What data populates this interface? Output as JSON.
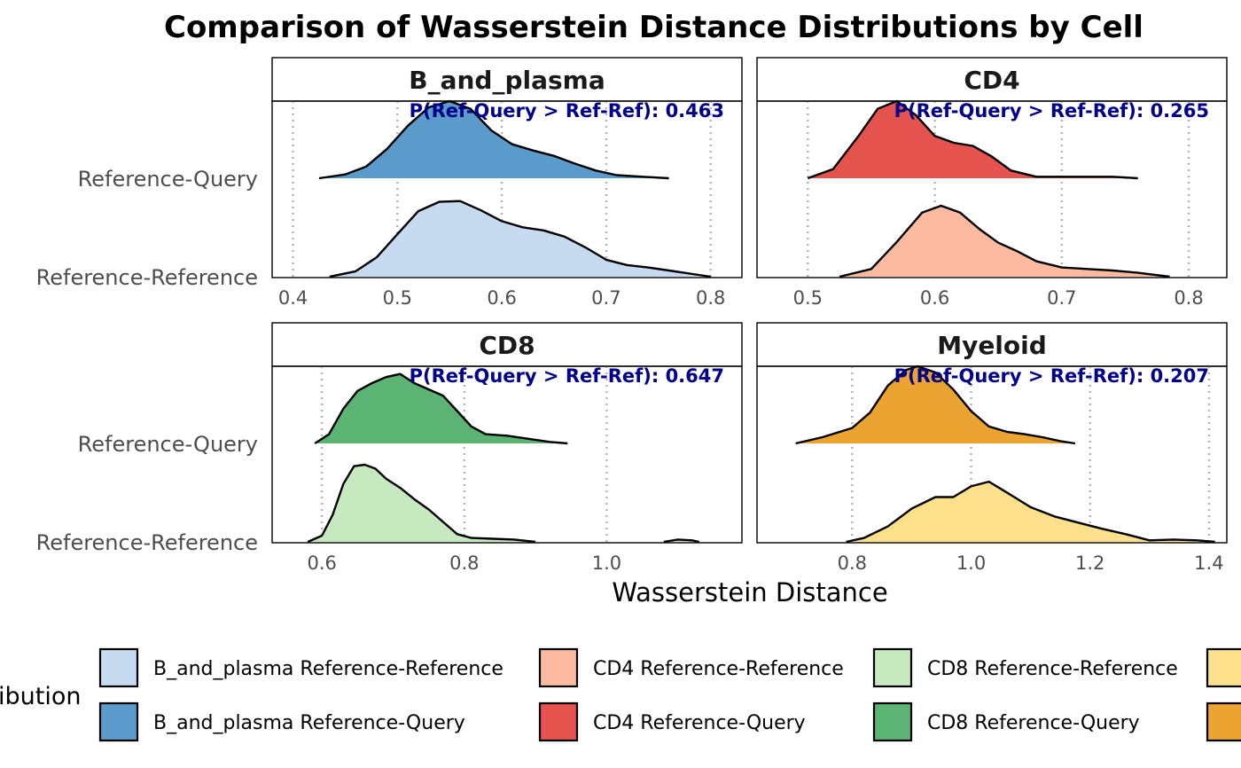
{
  "chart_data": {
    "type": "area",
    "subtype": "ridgeline-density",
    "title": "Comparison of Wasserstein Distance Distributions by Cell",
    "xlabel": "Wasserstein Distance",
    "ylabel": "",
    "grid": "dotted vertical major gridlines",
    "categories": [
      "Reference-Query",
      "Reference-Reference"
    ],
    "legend": {
      "title": "ibution",
      "position": "bottom",
      "items": [
        {
          "label": "B_and_plasma Reference-Reference",
          "color": "#c6dbef"
        },
        {
          "label": "B_and_plasma Reference-Query",
          "color": "#5b9bcb"
        },
        {
          "label": "CD4 Reference-Reference",
          "color": "#fcbba1"
        },
        {
          "label": "CD4 Reference-Query",
          "color": "#e5534f"
        },
        {
          "label": "CD8 Reference-Reference",
          "color": "#c7e9c0"
        },
        {
          "label": "CD8 Reference-Query",
          "color": "#5bb374"
        },
        {
          "label": "",
          "color": "#fde08b"
        },
        {
          "label": "",
          "color": "#eba332"
        }
      ]
    },
    "panels": [
      {
        "name": "B_and_plasma",
        "annotation": "P(Ref-Query > Ref-Ref): 0.463",
        "xlim": [
          0.38,
          0.83
        ],
        "xticks": [
          0.4,
          0.5,
          0.6,
          0.7,
          0.8
        ],
        "xtick_labels": [
          "0.4",
          "0.5",
          "0.6",
          "0.7",
          "0.8"
        ],
        "series": [
          {
            "name": "Reference-Query",
            "color": "#5b9bcb",
            "x": [
              0.425,
              0.45,
              0.47,
              0.49,
              0.51,
              0.53,
              0.55,
              0.57,
              0.59,
              0.61,
              0.63,
              0.65,
              0.67,
              0.69,
              0.71,
              0.735,
              0.76
            ],
            "y": [
              0.0,
              0.05,
              0.15,
              0.38,
              0.68,
              0.92,
              1.0,
              0.9,
              0.62,
              0.44,
              0.36,
              0.29,
              0.19,
              0.1,
              0.04,
              0.02,
              0.0
            ]
          },
          {
            "name": "Reference-Reference",
            "color": "#c6dbef",
            "x": [
              0.435,
              0.46,
              0.48,
              0.5,
              0.52,
              0.54,
              0.56,
              0.58,
              0.6,
              0.62,
              0.64,
              0.66,
              0.68,
              0.7,
              0.72,
              0.74,
              0.76,
              0.78,
              0.8
            ],
            "y": [
              0.0,
              0.07,
              0.25,
              0.55,
              0.85,
              0.97,
              0.98,
              0.86,
              0.72,
              0.64,
              0.6,
              0.52,
              0.38,
              0.22,
              0.15,
              0.12,
              0.08,
              0.04,
              0.0
            ]
          }
        ]
      },
      {
        "name": "CD4",
        "annotation": "P(Ref-Query > Ref-Ref): 0.265",
        "xlim": [
          0.46,
          0.83
        ],
        "xticks": [
          0.5,
          0.6,
          0.7,
          0.8
        ],
        "xtick_labels": [
          "0.5",
          "0.6",
          "0.7",
          "0.8"
        ],
        "series": [
          {
            "name": "Reference-Query",
            "color": "#e5534f",
            "x": [
              0.5,
              0.52,
              0.54,
              0.555,
              0.57,
              0.585,
              0.6,
              0.615,
              0.63,
              0.645,
              0.66,
              0.68,
              0.7,
              0.72,
              0.74,
              0.76
            ],
            "y": [
              0.0,
              0.12,
              0.55,
              0.9,
              1.0,
              0.82,
              0.55,
              0.46,
              0.42,
              0.28,
              0.1,
              0.02,
              0.02,
              0.02,
              0.02,
              0.0
            ]
          },
          {
            "name": "Reference-Reference",
            "color": "#fcbba1",
            "x": [
              0.525,
              0.55,
              0.57,
              0.59,
              0.605,
              0.62,
              0.635,
              0.65,
              0.665,
              0.68,
              0.7,
              0.72,
              0.74,
              0.76,
              0.785
            ],
            "y": [
              0.0,
              0.1,
              0.45,
              0.83,
              0.92,
              0.83,
              0.62,
              0.44,
              0.33,
              0.2,
              0.12,
              0.1,
              0.08,
              0.05,
              0.0
            ]
          }
        ]
      },
      {
        "name": "CD8",
        "annotation": "P(Ref-Query > Ref-Ref): 0.647",
        "xlim": [
          0.53,
          1.19
        ],
        "xticks": [
          0.6,
          0.8,
          1.0
        ],
        "xtick_labels": [
          "0.6",
          "0.8",
          "1.0"
        ],
        "series": [
          {
            "name": "Reference-Query",
            "color": "#5bb374",
            "x": [
              0.59,
              0.61,
              0.63,
              0.65,
              0.67,
              0.69,
              0.71,
              0.73,
              0.75,
              0.77,
              0.79,
              0.81,
              0.83,
              0.86,
              0.89,
              0.92,
              0.945
            ],
            "y": [
              0.0,
              0.12,
              0.45,
              0.68,
              0.78,
              0.86,
              0.9,
              0.78,
              0.7,
              0.62,
              0.42,
              0.22,
              0.12,
              0.1,
              0.06,
              0.02,
              0.0
            ]
          },
          {
            "name": "Reference-Reference",
            "color": "#c7e9c0",
            "x": [
              0.58,
              0.6,
              0.615,
              0.63,
              0.645,
              0.66,
              0.675,
              0.69,
              0.71,
              0.73,
              0.75,
              0.77,
              0.79,
              0.81,
              0.84,
              0.87,
              0.9
            ],
            "y": [
              0.0,
              0.08,
              0.35,
              0.75,
              0.98,
              1.0,
              0.95,
              0.82,
              0.7,
              0.55,
              0.42,
              0.26,
              0.1,
              0.05,
              0.04,
              0.03,
              0.0
            ]
          },
          {
            "name": "Reference-Reference",
            "color": "#c7e9c0",
            "x": [
              1.08,
              1.1,
              1.12,
              1.13
            ],
            "y": [
              0.0,
              0.03,
              0.02,
              0.0
            ]
          }
        ]
      },
      {
        "name": "Myeloid",
        "annotation": "P(Ref-Query > Ref-Ref): 0.207",
        "xlim": [
          0.64,
          1.43
        ],
        "xticks": [
          0.8,
          1.0,
          1.2,
          1.4
        ],
        "xtick_labels": [
          "0.8",
          "1.0",
          "1.2",
          "1.4"
        ],
        "series": [
          {
            "name": "Reference-Query",
            "color": "#eba332",
            "x": [
              0.705,
              0.75,
              0.8,
              0.83,
              0.86,
              0.89,
              0.91,
              0.94,
              0.97,
              1.0,
              1.03,
              1.06,
              1.09,
              1.12,
              1.15,
              1.175
            ],
            "y": [
              0.0,
              0.08,
              0.2,
              0.4,
              0.75,
              0.95,
              1.0,
              0.92,
              0.7,
              0.42,
              0.22,
              0.15,
              0.12,
              0.08,
              0.03,
              0.0
            ]
          },
          {
            "name": "Reference-Reference",
            "color": "#fde08b",
            "x": [
              0.79,
              0.82,
              0.86,
              0.9,
              0.94,
              0.97,
              1.0,
              1.03,
              1.06,
              1.1,
              1.14,
              1.18,
              1.22,
              1.26,
              1.3,
              1.34,
              1.38,
              1.41
            ],
            "y": [
              0.0,
              0.05,
              0.2,
              0.43,
              0.58,
              0.58,
              0.72,
              0.78,
              0.64,
              0.45,
              0.33,
              0.25,
              0.17,
              0.1,
              0.02,
              0.03,
              0.02,
              0.0
            ]
          }
        ]
      }
    ]
  }
}
